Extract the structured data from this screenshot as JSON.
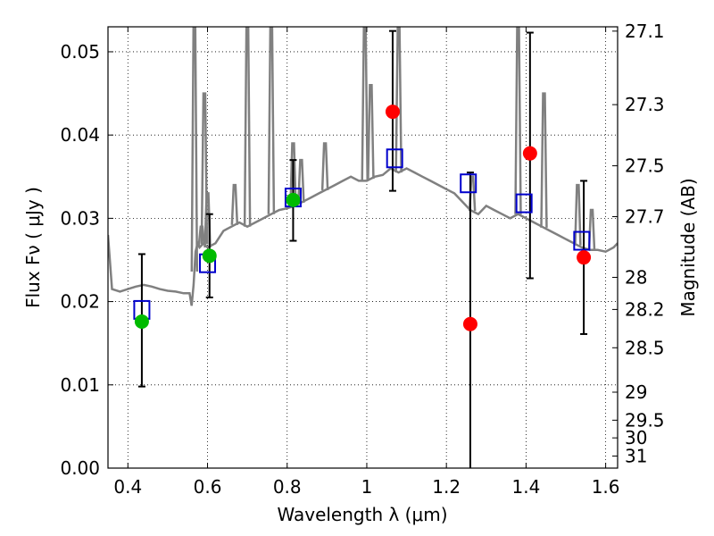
{
  "chart_data": {
    "type": "scatter",
    "title": "",
    "xlabel": "Wavelength  λ (μm)",
    "ylabel_left": "Flux  Fν  ( μJy )",
    "ylabel_right": "Magnitude (AB)",
    "xlim": [
      0.35,
      1.63
    ],
    "ylim": [
      0.0,
      0.053
    ],
    "grid": true,
    "x_ticks": [
      {
        "value": 0.4,
        "label": "0.4"
      },
      {
        "value": 0.6,
        "label": "0.6"
      },
      {
        "value": 0.8,
        "label": "0.8"
      },
      {
        "value": 1.0,
        "label": "1"
      },
      {
        "value": 1.2,
        "label": "1.2"
      },
      {
        "value": 1.4,
        "label": "1.4"
      },
      {
        "value": 1.6,
        "label": "1.6"
      }
    ],
    "y_ticks": [
      {
        "value": 0.0,
        "label": "0.00"
      },
      {
        "value": 0.01,
        "label": "0.01"
      },
      {
        "value": 0.02,
        "label": "0.02"
      },
      {
        "value": 0.03,
        "label": "0.03"
      },
      {
        "value": 0.04,
        "label": "0.04"
      },
      {
        "value": 0.05,
        "label": "0.05"
      }
    ],
    "y2_ticks": [
      {
        "mag": 27.1,
        "label": "27.1"
      },
      {
        "mag": 27.3,
        "label": "27.3"
      },
      {
        "mag": 27.5,
        "label": "27.5"
      },
      {
        "mag": 27.7,
        "label": "27.7"
      },
      {
        "mag": 28.0,
        "label": "28"
      },
      {
        "mag": 28.2,
        "label": "28.2"
      },
      {
        "mag": 28.5,
        "label": "28.5"
      },
      {
        "mag": 29.0,
        "label": "29"
      },
      {
        "mag": 29.5,
        "label": "29.5"
      },
      {
        "mag": 30.0,
        "label": "30"
      },
      {
        "mag": 31.0,
        "label": "31"
      }
    ],
    "series": [
      {
        "kind": "spectrum-line",
        "color": "#808080",
        "x": [
          0.35,
          0.36,
          0.38,
          0.4,
          0.42,
          0.44,
          0.46,
          0.48,
          0.5,
          0.52,
          0.54,
          0.555,
          0.56,
          0.565,
          0.57,
          0.575,
          0.58,
          0.59,
          0.6,
          0.62,
          0.64,
          0.66,
          0.68,
          0.7,
          0.72,
          0.74,
          0.76,
          0.78,
          0.8,
          0.82,
          0.84,
          0.86,
          0.88,
          0.9,
          0.92,
          0.94,
          0.96,
          0.98,
          1.0,
          1.02,
          1.04,
          1.06,
          1.08,
          1.1,
          1.12,
          1.14,
          1.16,
          1.18,
          1.2,
          1.22,
          1.24,
          1.26,
          1.28,
          1.3,
          1.32,
          1.34,
          1.36,
          1.38,
          1.4,
          1.42,
          1.44,
          1.46,
          1.48,
          1.5,
          1.52,
          1.54,
          1.56,
          1.58,
          1.6,
          1.62,
          1.63
        ],
        "y": [
          0.028,
          0.0215,
          0.0212,
          0.0215,
          0.0218,
          0.022,
          0.0218,
          0.0215,
          0.0213,
          0.0212,
          0.021,
          0.021,
          0.0195,
          0.022,
          0.026,
          0.027,
          0.0265,
          0.027,
          0.0265,
          0.027,
          0.0285,
          0.029,
          0.0295,
          0.029,
          0.0295,
          0.03,
          0.0305,
          0.031,
          0.0312,
          0.0315,
          0.032,
          0.0325,
          0.033,
          0.0335,
          0.034,
          0.0345,
          0.035,
          0.0345,
          0.0345,
          0.035,
          0.0352,
          0.036,
          0.0355,
          0.036,
          0.0355,
          0.035,
          0.0345,
          0.034,
          0.0335,
          0.033,
          0.032,
          0.031,
          0.0305,
          0.0315,
          0.031,
          0.0305,
          0.03,
          0.0305,
          0.03,
          0.0295,
          0.029,
          0.0285,
          0.028,
          0.0275,
          0.027,
          0.0265,
          0.0262,
          0.0262,
          0.026,
          0.0265,
          0.027
        ]
      },
      {
        "kind": "emission-lines",
        "color": "#808080",
        "lines": [
          {
            "x": 0.567,
            "peak": 0.053
          },
          {
            "x": 0.585,
            "peak": 0.029
          },
          {
            "x": 0.592,
            "peak": 0.045
          },
          {
            "x": 0.6,
            "peak": 0.033
          },
          {
            "x": 0.668,
            "peak": 0.034
          },
          {
            "x": 0.7,
            "peak": 0.053
          },
          {
            "x": 0.76,
            "peak": 0.053
          },
          {
            "x": 0.815,
            "peak": 0.039
          },
          {
            "x": 0.835,
            "peak": 0.037
          },
          {
            "x": 0.895,
            "peak": 0.039
          },
          {
            "x": 0.995,
            "peak": 0.053
          },
          {
            "x": 1.01,
            "peak": 0.046
          },
          {
            "x": 1.08,
            "peak": 0.053
          },
          {
            "x": 1.265,
            "peak": 0.035
          },
          {
            "x": 1.38,
            "peak": 0.053
          },
          {
            "x": 1.445,
            "peak": 0.045
          },
          {
            "x": 1.53,
            "peak": 0.034
          },
          {
            "x": 1.565,
            "peak": 0.031
          }
        ]
      },
      {
        "kind": "squares",
        "color": "#0000cc",
        "x": [
          0.435,
          0.6,
          0.815,
          1.07,
          1.255,
          1.395,
          1.54
        ],
        "y": [
          0.019,
          0.0246,
          0.0325,
          0.0372,
          0.0342,
          0.0318,
          0.0273
        ]
      },
      {
        "kind": "points-green",
        "color": "#00bb00",
        "x": [
          0.435,
          0.605,
          0.815
        ],
        "y": [
          0.0176,
          0.0255,
          0.0322
        ]
      },
      {
        "kind": "points-red",
        "color": "#ff0000",
        "x": [
          1.065,
          1.26,
          1.41,
          1.545
        ],
        "y": [
          0.0428,
          0.0173,
          0.0378,
          0.0253
        ]
      },
      {
        "kind": "errorbars",
        "color": "#000000",
        "bars": [
          {
            "x": 0.435,
            "ylo": 0.0098,
            "yhi": 0.0257
          },
          {
            "x": 0.605,
            "ylo": 0.0205,
            "yhi": 0.0305
          },
          {
            "x": 0.815,
            "ylo": 0.0273,
            "yhi": 0.037
          },
          {
            "x": 1.065,
            "ylo": 0.0333,
            "yhi": 0.0525
          },
          {
            "x": 1.26,
            "ylo": 0.0,
            "yhi": 0.0355
          },
          {
            "x": 1.41,
            "ylo": 0.0228,
            "yhi": 0.0523
          },
          {
            "x": 1.545,
            "ylo": 0.0161,
            "yhi": 0.0345
          }
        ]
      }
    ]
  }
}
